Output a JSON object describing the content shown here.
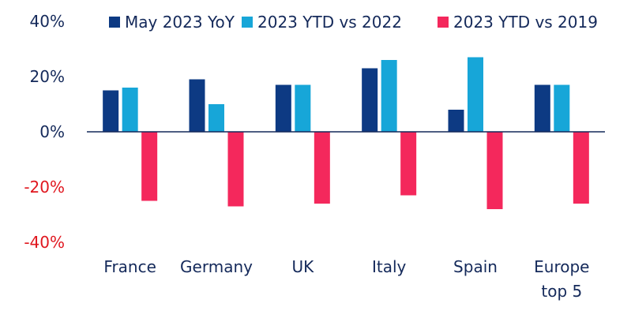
{
  "chart_data": {
    "type": "bar",
    "title": "",
    "xlabel": "",
    "ylabel": "",
    "ylim": [
      -40,
      40
    ],
    "yticks": [
      {
        "value": 40,
        "label": "40%",
        "color": "#14295a"
      },
      {
        "value": 20,
        "label": "20%",
        "color": "#14295a"
      },
      {
        "value": 0,
        "label": "0%",
        "color": "#14295a"
      },
      {
        "value": -20,
        "label": "-20%",
        "color": "#e0171f"
      },
      {
        "value": -40,
        "label": "-40%",
        "color": "#e0171f"
      }
    ],
    "categories": [
      {
        "lines": [
          "France"
        ]
      },
      {
        "lines": [
          "Germany"
        ]
      },
      {
        "lines": [
          "UK"
        ]
      },
      {
        "lines": [
          "Italy"
        ]
      },
      {
        "lines": [
          "Spain"
        ]
      },
      {
        "lines": [
          "Europe",
          "top 5"
        ]
      }
    ],
    "series": [
      {
        "name": "May 2023 YoY",
        "color": "#0d3a83",
        "values": [
          15,
          19,
          17,
          23,
          8,
          17
        ]
      },
      {
        "name": "2023 YTD vs 2022",
        "color": "#17a6d8",
        "values": [
          16,
          10,
          17,
          26,
          27,
          17
        ]
      },
      {
        "name": "2023 YTD vs 2019",
        "color": "#f4285c",
        "values": [
          -25,
          -27,
          -26,
          -23,
          -28,
          -26
        ]
      }
    ],
    "legend_position": "top"
  }
}
